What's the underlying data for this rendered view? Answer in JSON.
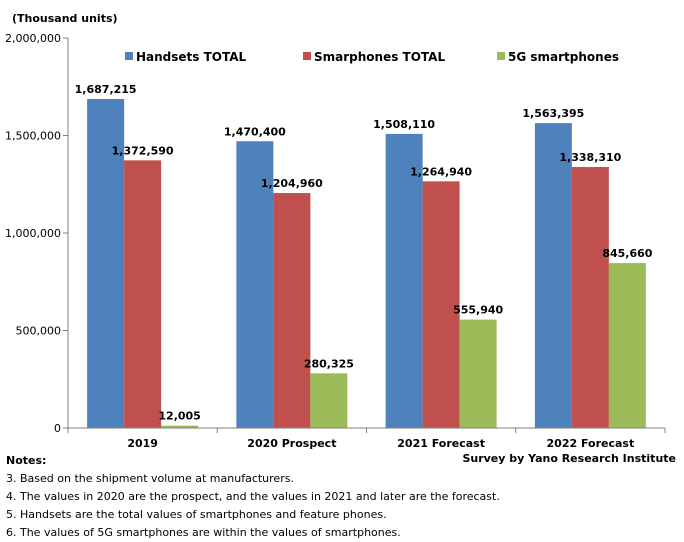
{
  "chart_data": {
    "type": "bar",
    "unit_label": "(Thousand units)",
    "categories": [
      "2019",
      "2020 Prospect",
      "2021 Forecast",
      "2022 Forecast"
    ],
    "series": [
      {
        "name": "Handsets TOTAL",
        "color": "#4f81bd",
        "values": [
          1687215,
          1470400,
          1508110,
          1563395
        ]
      },
      {
        "name": "Smarphones TOTAL",
        "color": "#c0504d",
        "values": [
          1372590,
          1204960,
          1264940,
          1338310
        ]
      },
      {
        "name": "5G smartphones",
        "color": "#9bbb59",
        "values": [
          12005,
          280325,
          555940,
          845660
        ]
      }
    ],
    "data_labels": [
      [
        "1,687,215",
        "1,470,400",
        "1,508,110",
        "1,563,395"
      ],
      [
        "1,372,590",
        "1,204,960",
        "1,264,940",
        "1,338,310"
      ],
      [
        "12,005",
        "280,325",
        "555,940",
        "845,660"
      ]
    ],
    "yticks": [
      0,
      500000,
      1000000,
      1500000,
      2000000
    ],
    "ytick_labels": [
      "0",
      "500,000",
      "1,000,000",
      "1,500,000",
      "2,000,000"
    ],
    "ylim": [
      0,
      2000000
    ],
    "legend_position": "top",
    "grid": false
  },
  "source": "Survey by Yano Research Institute",
  "notes": {
    "heading": "Notes:",
    "items": [
      "3. Based on the shipment volume at manufacturers.",
      "4. The values in 2020 are the prospect, and the values in 2021 and later are the forecast.",
      "5. Handsets are the total values of smartphones and feature phones.",
      "6. The values of 5G smartphones are within the values of smartphones."
    ]
  }
}
